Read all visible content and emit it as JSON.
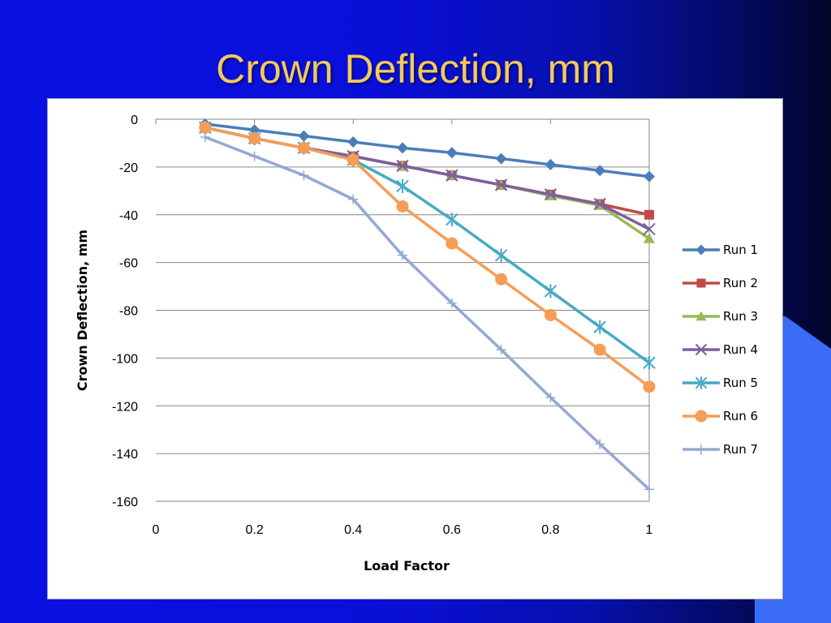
{
  "slide": {
    "title": "Crown Deflection, mm"
  },
  "colors": {
    "background": "#0a10e0",
    "title": "#f4c95d",
    "accent_shape": "#3b6cf5"
  },
  "chart_data": {
    "type": "line",
    "title": "",
    "xlabel": "Load Factor",
    "ylabel": "Crown Deflection,  mm",
    "xlim": [
      0,
      1
    ],
    "ylim": [
      -160,
      0
    ],
    "xticks": [
      "0",
      "0.2",
      "0.4",
      "0.6",
      "0.8",
      "1"
    ],
    "yticks": [
      "0",
      "-20",
      "-40",
      "-60",
      "-80",
      "-100",
      "-120",
      "-140",
      "-160"
    ],
    "grid": "horizontal",
    "legend": "right",
    "x": [
      0.1,
      0.2,
      0.3,
      0.4,
      0.5,
      0.6,
      0.7,
      0.8,
      0.9,
      1.0
    ],
    "series": [
      {
        "name": "Run 1",
        "color": "#4a7ebb",
        "marker": "diamond",
        "values": [
          -2,
          -4.5,
          -7,
          -9.5,
          -12,
          -14,
          -16.5,
          -19,
          -21.5,
          -24
        ]
      },
      {
        "name": "Run 2",
        "color": "#be4b48",
        "marker": "square",
        "values": [
          -3.5,
          -8,
          -12,
          -15.5,
          -19.5,
          -23.5,
          -27.5,
          -31.5,
          -35.5,
          -40
        ]
      },
      {
        "name": "Run 3",
        "color": "#98b954",
        "marker": "triangle",
        "values": [
          -3.5,
          -8,
          -12,
          -15.5,
          -19.5,
          -23.5,
          -27.5,
          -32,
          -36,
          -50
        ]
      },
      {
        "name": "Run 4",
        "color": "#7d5fa0",
        "marker": "x",
        "values": [
          -3.5,
          -8,
          -12,
          -15.5,
          -19.5,
          -23.5,
          -27.5,
          -31.5,
          -35.5,
          -46
        ]
      },
      {
        "name": "Run 5",
        "color": "#46aac5",
        "marker": "star",
        "values": [
          -3.5,
          -8,
          -12,
          -17,
          -28,
          -42,
          -57,
          -72,
          -87,
          -102
        ]
      },
      {
        "name": "Run 6",
        "color": "#f59d56",
        "marker": "circle",
        "values": [
          -3.5,
          -8,
          -12,
          -17,
          -36.5,
          -52,
          -67,
          -82,
          -96.5,
          -112
        ]
      },
      {
        "name": "Run 7",
        "color": "#93a9d0",
        "marker": "plus",
        "values": [
          -7.5,
          -15.5,
          -23.5,
          -33.5,
          -57,
          -77,
          -96.5,
          -116.5,
          -136,
          -155
        ]
      }
    ]
  }
}
